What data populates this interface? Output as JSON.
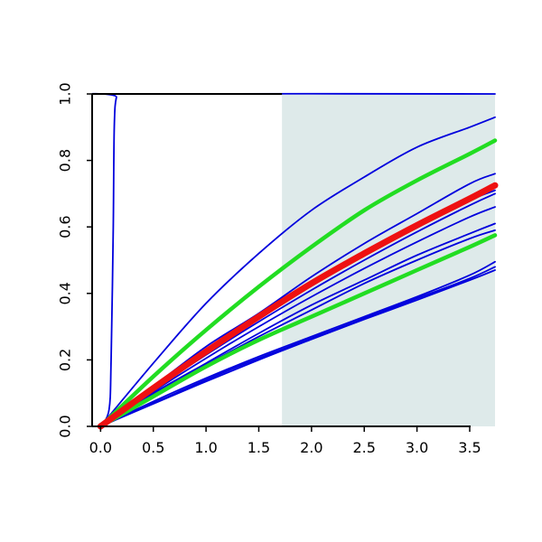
{
  "chart_data": {
    "type": "line",
    "title": "",
    "xlabel": "",
    "ylabel": "",
    "xlim": [
      -0.08,
      3.74
    ],
    "ylim": [
      0,
      1
    ],
    "x_ticks": [
      0,
      0.5,
      1,
      1.5,
      2,
      2.5,
      3,
      3.5
    ],
    "x_tick_labels": [
      "0.0",
      "0.5",
      "1.0",
      "1.5",
      "2.0",
      "2.5",
      "3.0",
      "3.5"
    ],
    "y_ticks": [
      0,
      0.2,
      0.4,
      0.6,
      0.8,
      1
    ],
    "y_tick_labels": [
      "0.0",
      "0.2",
      "0.4",
      "0.6",
      "0.8",
      "1.0"
    ],
    "shaded_region": {
      "x_from": 1.72,
      "x_to": 3.74,
      "color": "#deeaea"
    },
    "colors": {
      "blue": "#0000dd",
      "green": "#22dd22",
      "red": "#ee1111"
    },
    "series": [
      {
        "color": "blue",
        "weight": "thin",
        "x": [
          0,
          0.08,
          0.1,
          0.12,
          0.13,
          0.15,
          0.2,
          3.74
        ],
        "y": [
          0,
          0.05,
          0.2,
          0.6,
          0.9,
          0.99,
          1,
          1
        ]
      },
      {
        "color": "blue",
        "weight": "thin",
        "x": [
          0,
          0.5,
          1,
          1.5,
          2,
          2.5,
          3,
          3.5,
          3.74
        ],
        "y": [
          0,
          0.19,
          0.37,
          0.52,
          0.65,
          0.75,
          0.84,
          0.9,
          0.93
        ]
      },
      {
        "color": "green",
        "weight": "medium",
        "x": [
          0,
          0.5,
          1,
          1.5,
          2,
          2.5,
          3,
          3.5,
          3.74
        ],
        "y": [
          0,
          0.15,
          0.29,
          0.42,
          0.54,
          0.65,
          0.74,
          0.82,
          0.86
        ]
      },
      {
        "color": "blue",
        "weight": "thin",
        "x": [
          0,
          0.5,
          1,
          1.5,
          2,
          2.5,
          3,
          3.5,
          3.74
        ],
        "y": [
          0,
          0.12,
          0.24,
          0.34,
          0.45,
          0.55,
          0.64,
          0.73,
          0.76
        ]
      },
      {
        "color": "blue",
        "weight": "thin",
        "x": [
          0,
          0.5,
          1,
          1.5,
          2,
          2.5,
          3,
          3.5,
          3.74
        ],
        "y": [
          0,
          0.115,
          0.225,
          0.325,
          0.425,
          0.515,
          0.6,
          0.68,
          0.71
        ]
      },
      {
        "color": "blue",
        "weight": "thin",
        "x": [
          0,
          0.5,
          1,
          1.5,
          2,
          2.5,
          3,
          3.5,
          3.74
        ],
        "y": [
          0,
          0.11,
          0.215,
          0.315,
          0.41,
          0.5,
          0.585,
          0.665,
          0.7
        ]
      },
      {
        "color": "blue",
        "weight": "thin",
        "x": [
          0,
          0.5,
          1,
          1.5,
          2,
          2.5,
          3,
          3.5,
          3.74
        ],
        "y": [
          0,
          0.105,
          0.205,
          0.3,
          0.39,
          0.475,
          0.555,
          0.63,
          0.66
        ]
      },
      {
        "color": "blue",
        "weight": "thin",
        "x": [
          0,
          0.5,
          1,
          1.5,
          2,
          2.5,
          3,
          3.5,
          3.74
        ],
        "y": [
          0,
          0.1,
          0.19,
          0.28,
          0.365,
          0.44,
          0.515,
          0.58,
          0.61
        ]
      },
      {
        "color": "red",
        "weight": "thick",
        "x": [
          0,
          0.5,
          1,
          1.5,
          2,
          2.5,
          3,
          3.5,
          3.74
        ],
        "y": [
          0,
          0.115,
          0.225,
          0.33,
          0.43,
          0.52,
          0.605,
          0.685,
          0.725
        ]
      },
      {
        "color": "blue",
        "weight": "thin",
        "x": [
          0,
          0.5,
          1,
          1.5,
          2,
          2.5,
          3,
          3.5,
          3.74
        ],
        "y": [
          0,
          0.095,
          0.185,
          0.27,
          0.35,
          0.43,
          0.5,
          0.565,
          0.59
        ]
      },
      {
        "color": "green",
        "weight": "medium",
        "x": [
          0,
          0.5,
          1,
          1.5,
          2,
          2.5,
          3,
          3.5,
          3.74
        ],
        "y": [
          0,
          0.09,
          0.18,
          0.26,
          0.33,
          0.4,
          0.47,
          0.54,
          0.575
        ]
      },
      {
        "color": "blue",
        "weight": "thin",
        "x": [
          0,
          0.5,
          1,
          1.5,
          2,
          2.5,
          3,
          3.5,
          3.74
        ],
        "y": [
          0,
          0.075,
          0.145,
          0.21,
          0.27,
          0.33,
          0.39,
          0.455,
          0.495
        ]
      },
      {
        "color": "blue",
        "weight": "thin",
        "x": [
          0,
          0.5,
          1,
          1.5,
          2,
          2.5,
          3,
          3.5,
          3.74
        ],
        "y": [
          0,
          0.07,
          0.14,
          0.205,
          0.265,
          0.325,
          0.385,
          0.445,
          0.48
        ]
      },
      {
        "color": "blue",
        "weight": "thin",
        "x": [
          0,
          0.5,
          1,
          1.5,
          2,
          2.5,
          3,
          3.5,
          3.74
        ],
        "y": [
          0,
          0.068,
          0.135,
          0.2,
          0.262,
          0.322,
          0.38,
          0.44,
          0.47
        ]
      }
    ]
  }
}
